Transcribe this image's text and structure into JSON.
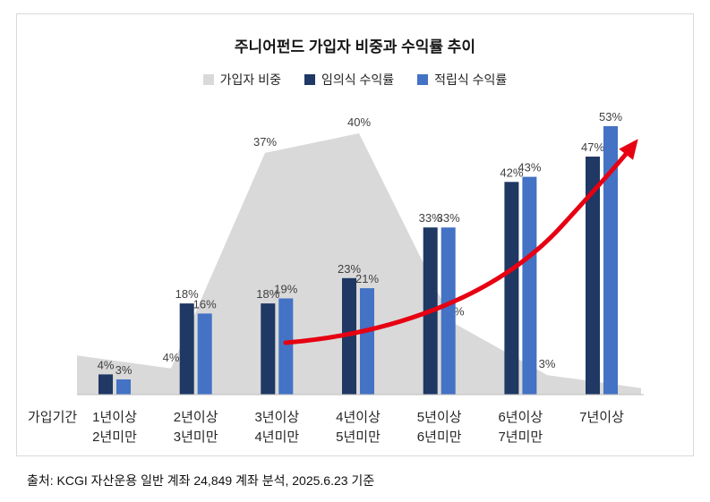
{
  "title": "주니어펀드 가입자 비중과 수익률 추이",
  "source_note": "출처: KCGI 자산운용 일반 계좌 24,849 계좌 분석, 2025.6.23 기준",
  "x_axis_title": "가입기간",
  "legend": [
    {
      "label": "가입자 비중",
      "color": "#d9d9d9"
    },
    {
      "label": "임의식 수익률",
      "color": "#1f3864"
    },
    {
      "label": "적립식 수익률",
      "color": "#4472c4"
    }
  ],
  "chart_data": {
    "type": "combo",
    "title": "주니어펀드 가입자 비중과 수익률 추이",
    "unit": "%",
    "legend_position": "top",
    "grid": false,
    "categories": [
      [
        "1년이상",
        "2년미만"
      ],
      [
        "2년이상",
        "3년미만"
      ],
      [
        "3년이상",
        "4년미만"
      ],
      [
        "4년이상",
        "5년미만"
      ],
      [
        "5년이상",
        "6년미만"
      ],
      [
        "6년이상",
        "7년미만"
      ],
      [
        "7년이상",
        ""
      ]
    ],
    "series": [
      {
        "name": "가입자 비중",
        "chart_type": "area",
        "color": "#d9d9d9",
        "values": [
          6,
          4,
          37,
          40,
          11,
          3,
          1
        ],
        "labels": [
          "",
          "4%",
          "37%",
          "40%",
          "11%",
          "3%",
          ""
        ]
      },
      {
        "name": "임의식 수익률",
        "chart_type": "bar",
        "color": "#1f3864",
        "values": [
          4,
          18,
          18,
          23,
          33,
          42,
          47
        ],
        "labels": [
          "4%",
          "18%",
          "18%",
          "23%",
          "33%",
          "42%",
          "47%"
        ]
      },
      {
        "name": "적립식 수익률",
        "chart_type": "bar",
        "color": "#4472c4",
        "values": [
          3,
          16,
          19,
          21,
          33,
          43,
          53
        ],
        "labels": [
          "3%",
          "16%",
          "19%",
          "21%",
          "33%",
          "43%",
          "53%"
        ]
      }
    ],
    "annotations": [
      {
        "type": "trend-arrow",
        "color": "#e60012"
      }
    ]
  }
}
